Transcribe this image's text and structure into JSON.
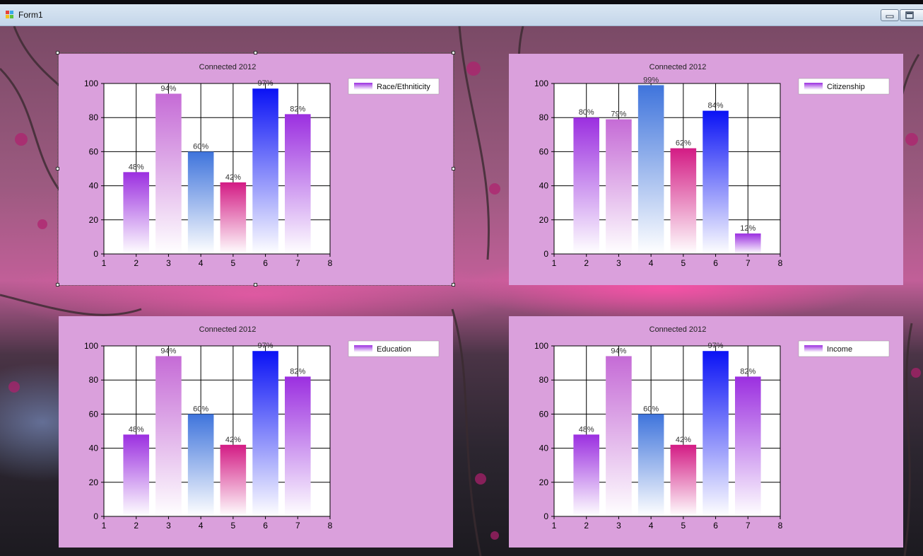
{
  "window": {
    "title": "Form1"
  },
  "colors": {
    "panel": "#daa0dc",
    "purple": "#9b2fe0",
    "orchid": "#c56bd6",
    "steel": "#3f74dc",
    "magenta": "#d31b84",
    "blue": "#0a12f5",
    "violet": "#9b2fe0"
  },
  "charts": [
    {
      "title": "Connected 2012",
      "legend": "Race/Ethniticity",
      "chart_data": {
        "type": "bar",
        "x": [
          2,
          3,
          4,
          5,
          6,
          7
        ],
        "values": [
          48,
          94,
          60,
          42,
          97,
          82
        ],
        "data_labels": [
          "48%",
          "94%",
          "60%",
          "42%",
          "97%",
          "82%"
        ],
        "bar_colors": [
          "purple",
          "orchid",
          "steel",
          "magenta",
          "blue",
          "violet"
        ],
        "xlim": [
          1,
          8
        ],
        "ylim": [
          0,
          100
        ],
        "x_ticks": [
          "1",
          "2",
          "3",
          "4",
          "5",
          "6",
          "7",
          "8"
        ],
        "y_ticks": [
          "0",
          "20",
          "40",
          "60",
          "80",
          "100"
        ],
        "grid": true,
        "legend_position": "top-right"
      }
    },
    {
      "title": "Connected 2012",
      "legend": "Citizenship",
      "chart_data": {
        "type": "bar",
        "x": [
          2,
          3,
          4,
          5,
          6,
          7
        ],
        "values": [
          80,
          79,
          99,
          62,
          84,
          12
        ],
        "data_labels": [
          "80%",
          "79%",
          "99%",
          "62%",
          "84%",
          "12%"
        ],
        "bar_colors": [
          "purple",
          "orchid",
          "steel",
          "magenta",
          "blue",
          "violet"
        ],
        "xlim": [
          1,
          8
        ],
        "ylim": [
          0,
          100
        ],
        "x_ticks": [
          "1",
          "2",
          "3",
          "4",
          "5",
          "6",
          "7",
          "8"
        ],
        "y_ticks": [
          "0",
          "20",
          "40",
          "60",
          "80",
          "100"
        ],
        "grid": true,
        "legend_position": "top-right"
      }
    },
    {
      "title": "Connected 2012",
      "legend": "Education",
      "chart_data": {
        "type": "bar",
        "x": [
          2,
          3,
          4,
          5,
          6,
          7
        ],
        "values": [
          48,
          94,
          60,
          42,
          97,
          82
        ],
        "data_labels": [
          "48%",
          "94%",
          "60%",
          "42%",
          "97%",
          "82%"
        ],
        "bar_colors": [
          "purple",
          "orchid",
          "steel",
          "magenta",
          "blue",
          "violet"
        ],
        "xlim": [
          1,
          8
        ],
        "ylim": [
          0,
          100
        ],
        "x_ticks": [
          "1",
          "2",
          "3",
          "4",
          "5",
          "6",
          "7",
          "8"
        ],
        "y_ticks": [
          "0",
          "20",
          "40",
          "60",
          "80",
          "100"
        ],
        "grid": true,
        "legend_position": "top-right"
      }
    },
    {
      "title": "Connected 2012",
      "legend": "Income",
      "chart_data": {
        "type": "bar",
        "x": [
          2,
          3,
          4,
          5,
          6,
          7
        ],
        "values": [
          48,
          94,
          60,
          42,
          97,
          82
        ],
        "data_labels": [
          "48%",
          "94%",
          "60%",
          "42%",
          "97%",
          "82%"
        ],
        "bar_colors": [
          "purple",
          "orchid",
          "steel",
          "magenta",
          "blue",
          "violet"
        ],
        "xlim": [
          1,
          8
        ],
        "ylim": [
          0,
          100
        ],
        "x_ticks": [
          "1",
          "2",
          "3",
          "4",
          "5",
          "6",
          "7",
          "8"
        ],
        "y_ticks": [
          "0",
          "20",
          "40",
          "60",
          "80",
          "100"
        ],
        "grid": true,
        "legend_position": "top-right"
      }
    }
  ]
}
